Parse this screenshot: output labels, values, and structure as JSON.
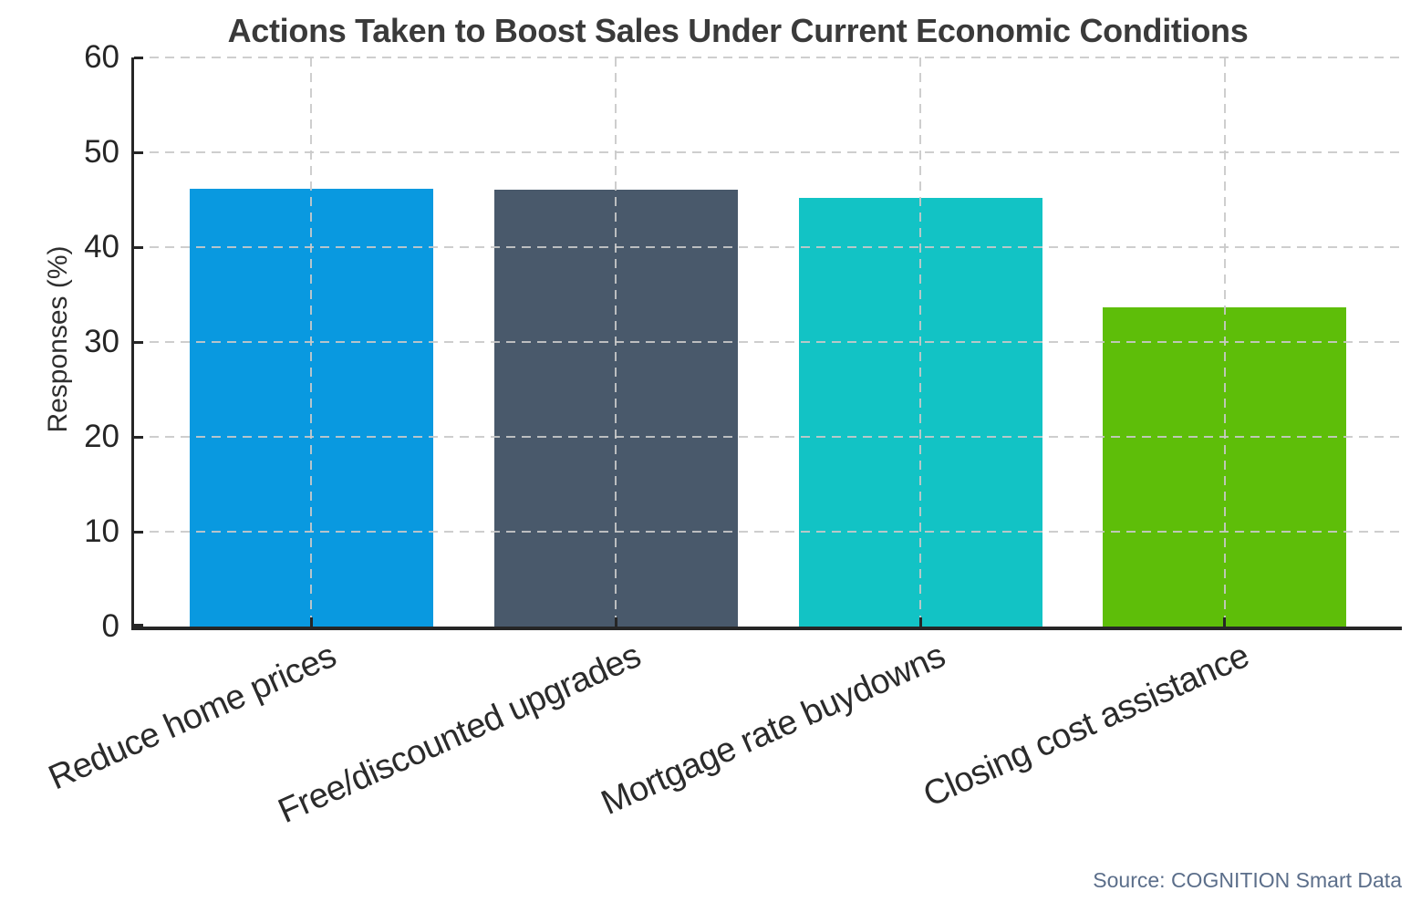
{
  "figure": {
    "title": "Actions Taken to Boost Sales Under Current Economic Conditions",
    "source": "Source: COGNITION Smart Data"
  },
  "chart_data": {
    "type": "bar",
    "title": "Actions Taken to Boost Sales Under Current Economic Conditions",
    "categories": [
      "Reduce home prices",
      "Free/discounted upgrades",
      "Mortgage rate buydowns",
      "Closing cost assistance"
    ],
    "values": [
      46.2,
      46.1,
      45.2,
      33.7
    ],
    "bar_colors": [
      "#0999e0",
      "#49596b",
      "#12c3c5",
      "#5ebe09"
    ],
    "xlabel": "",
    "ylabel": "Responses (%)",
    "ylim": [
      0,
      60
    ],
    "yticks": [
      0,
      10,
      20,
      30,
      40,
      50,
      60
    ],
    "grid": true,
    "grid_style": "dashed",
    "grid_over_bars": true,
    "legend": false,
    "source": "Source: COGNITION Smart Data",
    "colors": {
      "title": "#3a3a3a",
      "tick_labels": "#262626",
      "axis": "#262626",
      "grid": "#c9c9c9",
      "source": "#5b6e8a",
      "background": "#ffffff"
    }
  }
}
